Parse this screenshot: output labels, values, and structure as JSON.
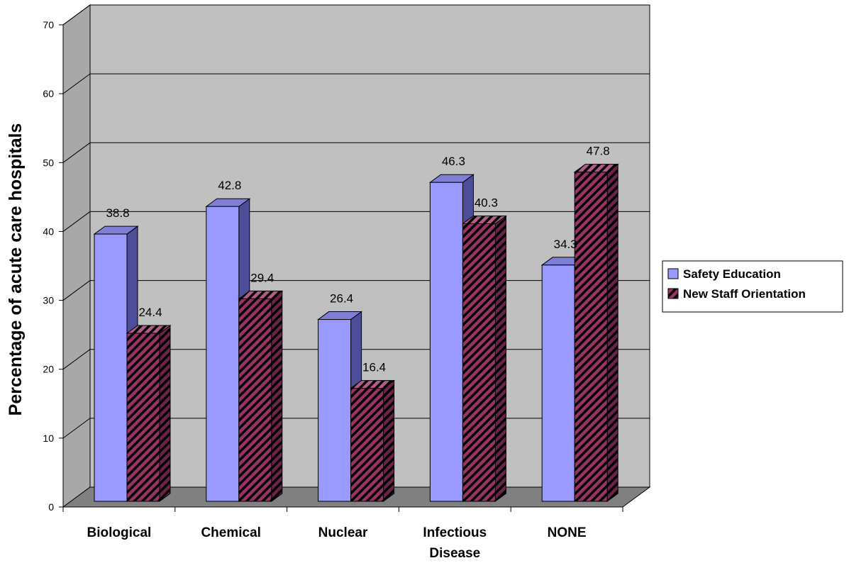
{
  "chart_data": {
    "type": "bar",
    "title": "",
    "xlabel": "",
    "ylabel": "Percentage of acute care hospitals",
    "ylim": [
      0,
      70
    ],
    "yticks": [
      0,
      10,
      20,
      30,
      40,
      50,
      60,
      70
    ],
    "grid": true,
    "legend_position": "right",
    "categories": [
      "Biological",
      "Chemical",
      "Nuclear",
      "Infectious\nDisease",
      "NONE"
    ],
    "series": [
      {
        "name": "Safety Education",
        "values": [
          38.8,
          42.8,
          26.4,
          46.3,
          34.3
        ],
        "color": "#9999ff",
        "pattern": "solid"
      },
      {
        "name": "New Staff Orientation",
        "values": [
          24.4,
          29.4,
          16.4,
          40.3,
          47.8
        ],
        "color": "#993366",
        "pattern": "diagonal-stripes"
      }
    ]
  }
}
